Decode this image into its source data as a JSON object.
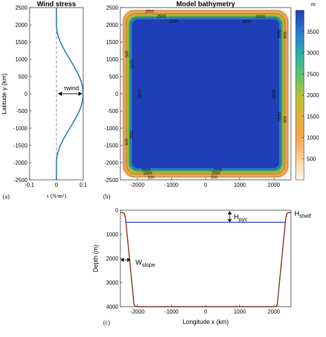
{
  "chart_data": [
    {
      "type": "line",
      "panel_label": "(a)",
      "title": "Wind stress",
      "xlabel": "τ (N/m²)",
      "ylabel": "Latitude y (km)",
      "xlim": [
        -0.1,
        0.1
      ],
      "ylim": [
        -2500,
        2500
      ],
      "xticks": [
        -0.1,
        0,
        0.1
      ],
      "xtick_labels": [
        "-0.1",
        "0",
        "0.1"
      ],
      "yticks": [
        -2500,
        -2000,
        -1500,
        -1000,
        -500,
        0,
        500,
        1000,
        1500,
        2000,
        2500
      ],
      "ytick_labels": [
        "-2500",
        "-2000",
        "-1500",
        "-1000",
        "-500",
        "0",
        "500",
        "1000",
        "1500",
        "2000",
        "2500"
      ],
      "zero_line": "dashed",
      "annotation": "τwind",
      "series": [
        {
          "color": "#1f77b4",
          "x": [
            0,
            0.0017,
            0.0067,
            0.0146,
            0.025,
            0.0371,
            0.05,
            0.0629,
            0.075,
            0.0854,
            0.0933,
            0.0983,
            0.1,
            0.0983,
            0.0933,
            0.0854,
            0.075,
            0.0629,
            0.05,
            0.0371,
            0.025,
            0.0146,
            0.0067,
            0.0017,
            0
          ],
          "y": [
            -2000,
            -1833,
            -1667,
            -1500,
            -1333,
            -1167,
            -1000,
            -833,
            -667,
            -500,
            -333,
            -167,
            0,
            167,
            333,
            500,
            667,
            833,
            1000,
            1167,
            1333,
            1500,
            1667,
            1833,
            2000
          ]
        }
      ],
      "y_flat_below": -2000,
      "y_flat_above": 2000
    },
    {
      "type": "heatmap",
      "panel_label": "(b)",
      "title": "Model bathymetry",
      "xlim": [
        -2500,
        2500
      ],
      "ylim": [
        -2500,
        2500
      ],
      "xticks": [
        -2000,
        -1000,
        0,
        1000,
        2000
      ],
      "xtick_labels": [
        "-2000",
        "-1000",
        "0",
        "1000",
        "2000"
      ],
      "yticks": [
        -2500,
        -2000,
        -1500,
        -1000,
        -500,
        0,
        500,
        1000,
        1500,
        2000,
        2500
      ],
      "ytick_labels": [
        "-2500",
        "-2000",
        "-1500",
        "-1000",
        "-500",
        "0",
        "500",
        "1000",
        "1500",
        "2000",
        "2500"
      ],
      "colorbar_label": "m",
      "colorbar_ticks": [
        500,
        1000,
        1500,
        2000,
        2500,
        3000,
        3500
      ],
      "colorbar_tick_labels": [
        "500",
        "1000",
        "1500",
        "2000",
        "2500",
        "3000",
        "3500"
      ],
      "colorbar_range": [
        0,
        4000
      ],
      "deep_color": "#1e3fb8",
      "contour_levels": [
        500,
        1500,
        2500,
        3500
      ],
      "contour_labels": [
        {
          "text": "1500",
          "x": -1650,
          "y": 2400
        },
        {
          "text": "2500",
          "x": -1300,
          "y": 2260
        },
        {
          "text": "3500",
          "x": -950,
          "y": 2110
        },
        {
          "text": "500",
          "x": -2320,
          "y": 1150
        },
        {
          "text": "1500",
          "x": -2170,
          "y": 850
        },
        {
          "text": "500",
          "x": -2330,
          "y": -1400
        },
        {
          "text": "1500",
          "x": -2180,
          "y": -1200
        },
        {
          "text": "3500",
          "x": -1950,
          "y": 0
        },
        {
          "text": "2500",
          "x": -1750,
          "y": -2200
        },
        {
          "text": "1500",
          "x": -1700,
          "y": -2300
        },
        {
          "text": "500",
          "x": -1600,
          "y": -2420
        },
        {
          "text": "2500",
          "x": 350,
          "y": -2200
        },
        {
          "text": "1500",
          "x": 300,
          "y": -2300
        },
        {
          "text": "500",
          "x": 250,
          "y": -2420
        },
        {
          "text": "500",
          "x": 2330,
          "y": 1700
        },
        {
          "text": "2500",
          "x": 2160,
          "y": 1750
        },
        {
          "text": "3500",
          "x": 2000,
          "y": 0
        },
        {
          "text": "500",
          "x": 2330,
          "y": -750
        },
        {
          "text": "1500",
          "x": 2170,
          "y": -650
        },
        {
          "text": "3500",
          "x": 1200,
          "y": 2100
        },
        {
          "text": "2500",
          "x": 1600,
          "y": 2250
        }
      ]
    },
    {
      "type": "line",
      "panel_label": "(c)",
      "xlabel": "Longitude x (km)",
      "ylabel": "Depth (m)",
      "xlim": [
        -2500,
        2500
      ],
      "ylim": [
        4000,
        0
      ],
      "xticks": [
        -2000,
        -1000,
        0,
        1000,
        2000
      ],
      "xtick_labels": [
        "-2000",
        "-1000",
        "0",
        "1000",
        "2000"
      ],
      "yticks": [
        0,
        1000,
        2000,
        3000,
        4000
      ],
      "ytick_labels": [
        "0",
        "1000",
        "2000",
        "3000",
        "4000"
      ],
      "series": [
        {
          "color": "#7a2a14",
          "x": [
            -2500,
            -2420,
            -2380,
            -2350,
            -2100,
            -2070,
            -2030,
            2030,
            2070,
            2100,
            2350,
            2380,
            2420,
            2500
          ],
          "y": [
            100,
            100,
            150,
            300,
            3900,
            3980,
            4000,
            4000,
            3980,
            3900,
            300,
            150,
            100,
            100
          ]
        },
        {
          "color": "#2b2bd9",
          "x": [
            -2350,
            2350
          ],
          "y": [
            500,
            500
          ]
        }
      ],
      "annotations": [
        {
          "text": "H",
          "sub": "pyc"
        },
        {
          "text": "H",
          "sub": "shelf"
        },
        {
          "text": "W",
          "sub": "slope"
        }
      ]
    }
  ]
}
